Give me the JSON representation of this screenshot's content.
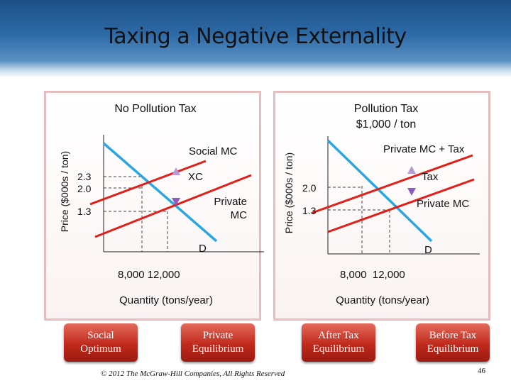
{
  "slide": {
    "title": "Taxing a Negative Externality",
    "footer": "© 2012 The McGraw-Hill Companies, All Rights Reserved",
    "page_number": "46"
  },
  "left_chart": {
    "heading": "No Pollution Tax",
    "ylabel": "Price ($000s / ton)",
    "xlabel": "Quantity (tons/year)",
    "y_ticks": [
      "2.3",
      "2.0",
      "1.3"
    ],
    "x_ticks": "8,000 12,000",
    "labels": {
      "social_mc": "Social MC",
      "xc": "XC",
      "private_mc_line1": "Private",
      "private_mc_line2": "MC",
      "demand": "D"
    }
  },
  "right_chart": {
    "heading_line1": "Pollution Tax",
    "heading_line2": "$1,000 / ton",
    "ylabel": "Price ($000s / ton)",
    "xlabel": "Quantity (tons/year)",
    "y_ticks": [
      "2.0",
      "1.3"
    ],
    "x_ticks": "8,000  12,000",
    "labels": {
      "private_mc_tax": "Private MC + Tax",
      "tax": "Tax",
      "private_mc": "Private MC",
      "demand": "D"
    }
  },
  "buttons": [
    {
      "label": "Social\nOptimum"
    },
    {
      "label": "Private\nEquilibrium"
    },
    {
      "label": "After Tax\nEquilibrium"
    },
    {
      "label": "Before Tax\nEquilibrium"
    }
  ],
  "colors": {
    "supply_line": "#e0201b",
    "demand_line": "#2aa7e0",
    "arrow": "#a07ac8",
    "button": "#c02a1c",
    "panel_border": "#e6bcbc"
  }
}
